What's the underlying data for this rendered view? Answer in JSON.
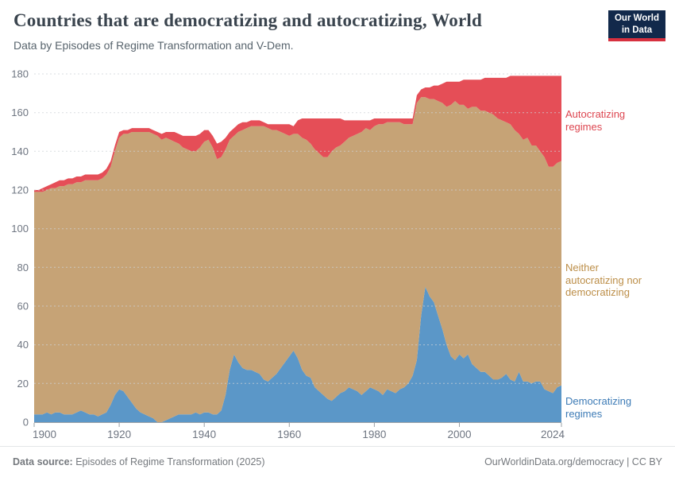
{
  "header": {
    "title": "Countries that are democratizing and autocratizing, World",
    "subtitle": "Data by Episodes of Regime Transformation and V-Dem.",
    "logo": {
      "line1": "Our World",
      "line2": "in Data"
    }
  },
  "legend": {
    "autocratizing": "Autocratizing regimes",
    "neither": "Neither autocratizing nor democratizing",
    "democratizing": "Democratizing regimes"
  },
  "footer": {
    "source_label": "Data source:",
    "source_value": "Episodes of Regime Transformation (2025)",
    "credit": "OurWorldinData.org/democracy | CC BY"
  },
  "colors": {
    "area_democratizing": "#5b97c8",
    "area_neither": "#c6a376",
    "area_autocratizing": "#e54e57",
    "label_democratizing": "#3d7bb6",
    "label_neither": "#bc8e48",
    "label_autocratizing": "#dd4650",
    "logo_navy": "#12294b",
    "logo_red": "#d7303f",
    "axis_text": "#6e7581",
    "axis_line": "#9aa0a6",
    "gridline": "#cdd2d6"
  },
  "chart_data": {
    "type": "area",
    "stacked": true,
    "title": "Countries that are democratizing and autocratizing, World",
    "xlabel": "",
    "ylabel": "",
    "ylim": [
      0,
      180
    ],
    "yticks": [
      0,
      20,
      40,
      60,
      80,
      100,
      120,
      140,
      160,
      180
    ],
    "xticks": [
      1900,
      1920,
      1940,
      1960,
      1980,
      2000,
      2024
    ],
    "grid": "dashed",
    "legend_position": "right",
    "x": [
      1900,
      1901,
      1902,
      1903,
      1904,
      1905,
      1906,
      1907,
      1908,
      1909,
      1910,
      1911,
      1912,
      1913,
      1914,
      1915,
      1916,
      1917,
      1918,
      1919,
      1920,
      1921,
      1922,
      1923,
      1924,
      1925,
      1926,
      1927,
      1928,
      1929,
      1930,
      1931,
      1932,
      1933,
      1934,
      1935,
      1936,
      1937,
      1938,
      1939,
      1940,
      1941,
      1942,
      1943,
      1944,
      1945,
      1946,
      1947,
      1948,
      1949,
      1950,
      1951,
      1952,
      1953,
      1954,
      1955,
      1956,
      1957,
      1958,
      1959,
      1960,
      1961,
      1962,
      1963,
      1964,
      1965,
      1966,
      1967,
      1968,
      1969,
      1970,
      1971,
      1972,
      1973,
      1974,
      1975,
      1976,
      1977,
      1978,
      1979,
      1980,
      1981,
      1982,
      1983,
      1984,
      1985,
      1986,
      1987,
      1988,
      1989,
      1990,
      1991,
      1992,
      1993,
      1994,
      1995,
      1996,
      1997,
      1998,
      1999,
      2000,
      2001,
      2002,
      2003,
      2004,
      2005,
      2006,
      2007,
      2008,
      2009,
      2010,
      2011,
      2012,
      2013,
      2014,
      2015,
      2016,
      2017,
      2018,
      2019,
      2020,
      2021,
      2022,
      2023,
      2024
    ],
    "series": [
      {
        "id": "democratizing",
        "name": "Democratizing regimes",
        "color": "#5b97c8",
        "values": [
          4,
          4,
          4,
          5,
          4,
          5,
          5,
          4,
          4,
          4,
          5,
          6,
          5,
          4,
          4,
          3,
          4,
          5,
          9,
          14,
          17,
          16,
          13,
          10,
          7,
          5,
          4,
          3,
          2,
          0,
          0,
          1,
          2,
          3,
          4,
          4,
          4,
          4,
          5,
          4,
          5,
          5,
          4,
          4,
          6,
          14,
          27,
          35,
          31,
          28,
          27,
          27,
          26,
          25,
          22,
          21,
          23,
          25,
          28,
          31,
          34,
          37,
          33,
          27,
          24,
          23,
          18,
          16,
          14,
          12,
          11,
          13,
          15,
          16,
          18,
          17,
          16,
          14,
          16,
          18,
          17,
          16,
          14,
          17,
          16,
          15,
          17,
          18,
          20,
          24,
          32,
          55,
          70,
          65,
          62,
          55,
          48,
          40,
          34,
          32,
          35,
          33,
          35,
          30,
          28,
          26,
          26,
          24,
          22,
          22,
          23,
          25,
          22,
          21,
          26,
          21,
          21,
          20,
          21,
          21,
          17,
          16,
          15,
          18,
          19
        ]
      },
      {
        "id": "neither",
        "name": "Neither autocratizing nor democratizing",
        "color": "#c6a376",
        "values": [
          115,
          115,
          115,
          115,
          117,
          116,
          117,
          118,
          119,
          119,
          119,
          118,
          120,
          121,
          121,
          122,
          122,
          123,
          123,
          126,
          130,
          133,
          136,
          140,
          143,
          145,
          146,
          147,
          147,
          148,
          146,
          146,
          144,
          142,
          140,
          138,
          137,
          136,
          135,
          138,
          140,
          141,
          138,
          132,
          131,
          127,
          119,
          113,
          119,
          123,
          125,
          126,
          127,
          128,
          131,
          131,
          128,
          126,
          122,
          118,
          114,
          112,
          116,
          120,
          122,
          121,
          123,
          123,
          123,
          125,
          129,
          129,
          128,
          129,
          129,
          131,
          133,
          136,
          136,
          133,
          136,
          138,
          140,
          138,
          139,
          140,
          138,
          136,
          134,
          130,
          133,
          113,
          98,
          102,
          105,
          111,
          117,
          123,
          130,
          134,
          129,
          131,
          127,
          133,
          135,
          135,
          135,
          136,
          137,
          135,
          133,
          130,
          132,
          130,
          123,
          125,
          126,
          123,
          122,
          119,
          120,
          116,
          117,
          116,
          116
        ]
      },
      {
        "id": "autocratizing",
        "name": "Autocratizing regimes",
        "color": "#e54e57",
        "values": [
          1,
          1,
          2,
          2,
          2,
          3,
          3,
          3,
          3,
          3,
          3,
          3,
          3,
          3,
          3,
          3,
          3,
          3,
          3,
          3,
          3,
          2,
          2,
          2,
          2,
          2,
          2,
          2,
          2,
          2,
          3,
          3,
          4,
          5,
          5,
          6,
          7,
          8,
          8,
          7,
          6,
          5,
          6,
          8,
          8,
          6,
          4,
          4,
          4,
          4,
          3,
          3,
          3,
          3,
          2,
          2,
          3,
          3,
          4,
          5,
          6,
          4,
          7,
          10,
          11,
          13,
          16,
          18,
          20,
          20,
          17,
          15,
          14,
          11,
          9,
          8,
          7,
          6,
          4,
          5,
          4,
          3,
          3,
          2,
          2,
          2,
          2,
          3,
          3,
          3,
          4,
          4,
          5,
          6,
          7,
          8,
          10,
          13,
          12,
          10,
          12,
          13,
          15,
          14,
          14,
          16,
          17,
          18,
          19,
          21,
          22,
          23,
          25,
          28,
          30,
          33,
          32,
          36,
          36,
          39,
          42,
          47,
          47,
          45,
          44
        ]
      }
    ]
  }
}
